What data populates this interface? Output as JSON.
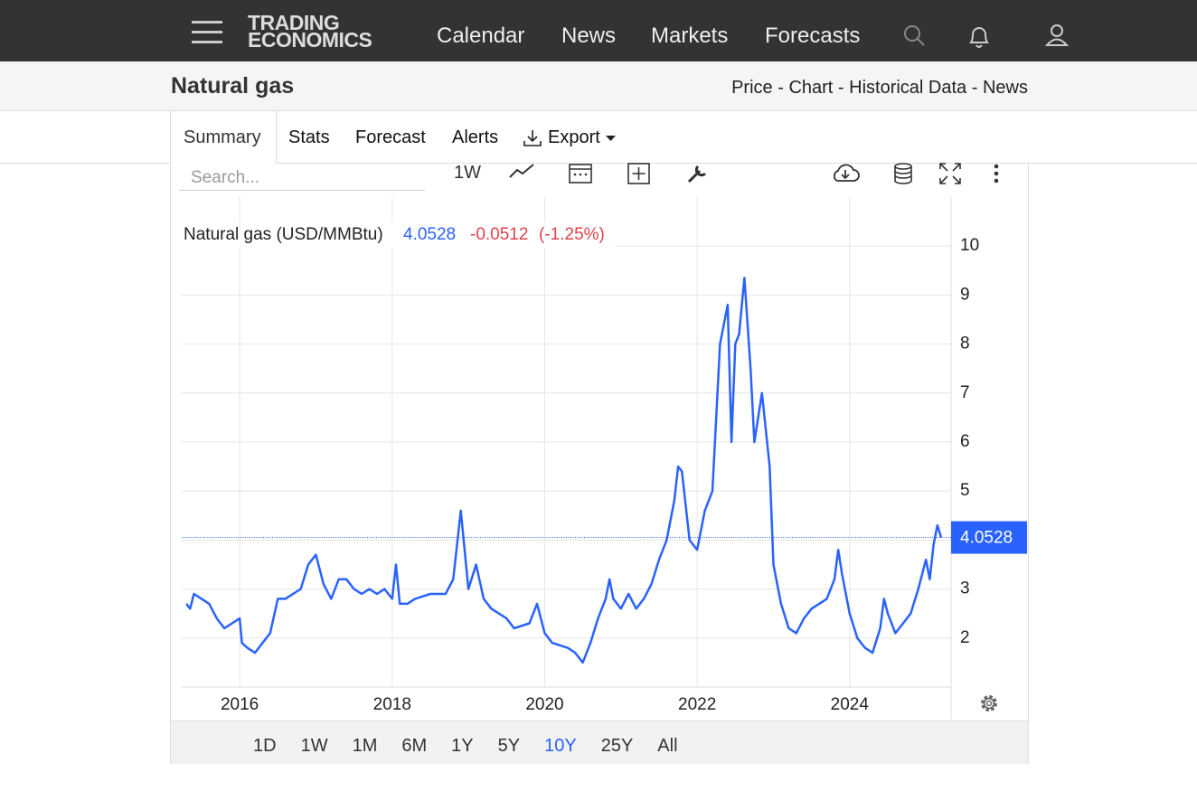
{
  "nav": {
    "logo": [
      "TRADING",
      "ECONOMICS"
    ],
    "links": [
      "Calendar",
      "News",
      "Markets",
      "Forecasts"
    ]
  },
  "header": {
    "title": "Natural gas",
    "links": [
      "Price",
      "Chart",
      "Historical Data",
      "News"
    ],
    "separator": "-"
  },
  "tabs": [
    "Summary",
    "Stats",
    "Forecast",
    "Alerts",
    "Export"
  ],
  "toolbar": {
    "search_placeholder": "Search...",
    "interval": "1W"
  },
  "ranges": {
    "options": [
      "1D",
      "1W",
      "1M",
      "6M",
      "1Y",
      "5Y",
      "10Y",
      "25Y",
      "All"
    ],
    "active": "10Y"
  },
  "chart_data": {
    "type": "line",
    "legend": {
      "name": "Natural gas (USD/MMBtu)",
      "change": "-0.0512",
      "change_percent": "(-1.25%)"
    },
    "last": 4.0528,
    "series": [
      {
        "name": "Natural gas",
        "color": "#2962ff",
        "x": [
          2015.3,
          2015.35,
          2015.4,
          2015.5,
          2015.6,
          2015.7,
          2015.8,
          2015.9,
          2016.0,
          2016.03,
          2016.1,
          2016.2,
          2016.3,
          2016.4,
          2016.5,
          2016.6,
          2016.7,
          2016.8,
          2016.9,
          2017.0,
          2017.1,
          2017.2,
          2017.3,
          2017.4,
          2017.5,
          2017.6,
          2017.7,
          2017.8,
          2017.9,
          2018.0,
          2018.05,
          2018.1,
          2018.2,
          2018.3,
          2018.5,
          2018.7,
          2018.8,
          2018.9,
          2019.0,
          2019.1,
          2019.2,
          2019.3,
          2019.5,
          2019.6,
          2019.8,
          2019.9,
          2020.0,
          2020.1,
          2020.3,
          2020.4,
          2020.5,
          2020.6,
          2020.7,
          2020.8,
          2020.85,
          2020.9,
          2021.0,
          2021.1,
          2021.2,
          2021.3,
          2021.4,
          2021.5,
          2021.6,
          2021.7,
          2021.75,
          2021.8,
          2021.9,
          2022.0,
          2022.1,
          2022.2,
          2022.25,
          2022.3,
          2022.4,
          2022.45,
          2022.5,
          2022.55,
          2022.62,
          2022.7,
          2022.75,
          2022.85,
          2022.95,
          2023.0,
          2023.1,
          2023.2,
          2023.3,
          2023.4,
          2023.5,
          2023.6,
          2023.7,
          2023.8,
          2023.85,
          2023.9,
          2024.0,
          2024.1,
          2024.2,
          2024.3,
          2024.4,
          2024.45,
          2024.5,
          2024.6,
          2024.7,
          2024.8,
          2024.9,
          2025.0,
          2025.05,
          2025.1,
          2025.15,
          2025.2
        ],
        "values": [
          2.7,
          2.6,
          2.9,
          2.8,
          2.7,
          2.4,
          2.2,
          2.3,
          2.4,
          1.9,
          1.8,
          1.7,
          1.9,
          2.1,
          2.8,
          2.8,
          2.9,
          3.0,
          3.5,
          3.7,
          3.1,
          2.8,
          3.2,
          3.2,
          3.0,
          2.9,
          3.0,
          2.9,
          3.0,
          2.8,
          3.5,
          2.7,
          2.7,
          2.8,
          2.9,
          2.9,
          3.2,
          4.6,
          3.0,
          3.5,
          2.8,
          2.6,
          2.4,
          2.2,
          2.3,
          2.7,
          2.1,
          1.9,
          1.8,
          1.7,
          1.5,
          1.9,
          2.4,
          2.8,
          3.2,
          2.8,
          2.6,
          2.9,
          2.6,
          2.8,
          3.1,
          3.6,
          4.0,
          4.8,
          5.5,
          5.4,
          4.0,
          3.8,
          4.6,
          5.0,
          6.5,
          8.0,
          8.8,
          6.0,
          8.0,
          8.2,
          9.35,
          7.5,
          6.0,
          7.0,
          5.5,
          3.5,
          2.7,
          2.2,
          2.1,
          2.4,
          2.6,
          2.7,
          2.8,
          3.2,
          3.8,
          3.3,
          2.5,
          2.0,
          1.8,
          1.7,
          2.2,
          2.8,
          2.5,
          2.1,
          2.3,
          2.5,
          3.0,
          3.6,
          3.2,
          3.9,
          4.3,
          4.0528
        ]
      }
    ],
    "xlim": [
      2015.24,
      2025.33
    ],
    "xticks": [
      2016,
      2018,
      2020,
      2022,
      2024
    ],
    "ylim": [
      1,
      11
    ],
    "yticks": [
      2,
      3,
      4,
      5,
      6,
      7,
      8,
      9,
      10
    ],
    "grid": true
  }
}
